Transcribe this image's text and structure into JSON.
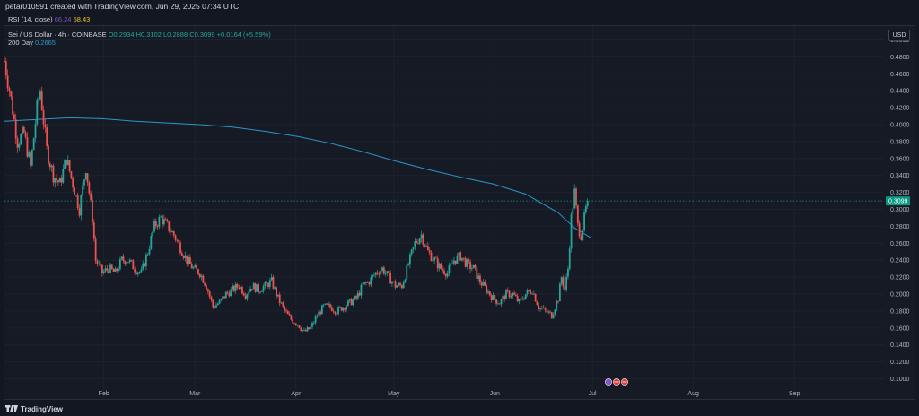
{
  "header": {
    "caption": "petar010591 created with TradingView.com, Jun 29, 2025 07:34 UTC"
  },
  "legend": {
    "rsi_name": "RSI (14, close)",
    "rsi_value_1": "66.24",
    "rsi_value_2": "58.43",
    "symbol": "Sei / US Dollar · 4h · COINBASE",
    "ohlc": "O0.2934 H0.3102 L0.2888 C0.3099 +0.0164 (+5.59%)",
    "ma_name": "200 Day",
    "ma_value": "0.2665"
  },
  "currency_badge": "USD",
  "footer": {
    "brand": "TradingView",
    "logo_icon": "tradingview-logo-icon"
  },
  "event_markers": {
    "icons": [
      "flash-icon",
      "flag-us-icon",
      "flag-us-icon"
    ]
  },
  "colors": {
    "up": "#26a69a",
    "down": "#ef5350",
    "ma": "#2b96c9",
    "price_badge": "#089981",
    "grid": "#1e222d",
    "background": "#161a25"
  },
  "chart_data": {
    "type": "candlestick",
    "interval": "4h",
    "y_scale": "linear",
    "ylim": [
      0.09,
      0.51
    ],
    "y_ticks": [
      "0.5000",
      "0.4800",
      "0.4600",
      "0.4400",
      "0.4200",
      "0.4000",
      "0.3800",
      "0.3600",
      "0.3400",
      "0.3200",
      "0.3000",
      "0.2800",
      "0.2600",
      "0.2400",
      "0.2200",
      "0.2000",
      "0.1800",
      "0.1600",
      "0.1400",
      "0.1200",
      "0.1000"
    ],
    "x_ticks": [
      "Feb",
      "Mar",
      "Apr",
      "May",
      "Jun",
      "Jul",
      "Aug",
      "Sep"
    ],
    "x_tick_positions": [
      30.5,
      58.5,
      89.5,
      119.5,
      150.5,
      180.5,
      211.5,
      242.5
    ],
    "x_range_days": [
      0,
      270
    ],
    "last_price": "0.3099",
    "last_price_value": 0.3099,
    "grid": true,
    "price_series_daily": [
      [
        0,
        0.475
      ],
      [
        2,
        0.43
      ],
      [
        4,
        0.38
      ],
      [
        6,
        0.39
      ],
      [
        8,
        0.35
      ],
      [
        10,
        0.42
      ],
      [
        11,
        0.44
      ],
      [
        13,
        0.37
      ],
      [
        15,
        0.34
      ],
      [
        17,
        0.33
      ],
      [
        19,
        0.36
      ],
      [
        21,
        0.33
      ],
      [
        23,
        0.3
      ],
      [
        25,
        0.35
      ],
      [
        27,
        0.29
      ],
      [
        28,
        0.24
      ],
      [
        30,
        0.225
      ],
      [
        32,
        0.23
      ],
      [
        34,
        0.225
      ],
      [
        36,
        0.24
      ],
      [
        38,
        0.24
      ],
      [
        40,
        0.23
      ],
      [
        42,
        0.225
      ],
      [
        44,
        0.25
      ],
      [
        46,
        0.28
      ],
      [
        48,
        0.29
      ],
      [
        50,
        0.28
      ],
      [
        52,
        0.27
      ],
      [
        54,
        0.255
      ],
      [
        56,
        0.24
      ],
      [
        58,
        0.23
      ],
      [
        60,
        0.225
      ],
      [
        62,
        0.21
      ],
      [
        64,
        0.185
      ],
      [
        66,
        0.19
      ],
      [
        68,
        0.2
      ],
      [
        70,
        0.205
      ],
      [
        72,
        0.21
      ],
      [
        74,
        0.2
      ],
      [
        76,
        0.21
      ],
      [
        78,
        0.205
      ],
      [
        80,
        0.21
      ],
      [
        82,
        0.215
      ],
      [
        84,
        0.195
      ],
      [
        86,
        0.18
      ],
      [
        88,
        0.17
      ],
      [
        90,
        0.165
      ],
      [
        92,
        0.155
      ],
      [
        94,
        0.16
      ],
      [
        96,
        0.175
      ],
      [
        98,
        0.185
      ],
      [
        100,
        0.185
      ],
      [
        102,
        0.18
      ],
      [
        104,
        0.185
      ],
      [
        106,
        0.19
      ],
      [
        108,
        0.195
      ],
      [
        110,
        0.21
      ],
      [
        112,
        0.215
      ],
      [
        114,
        0.225
      ],
      [
        116,
        0.23
      ],
      [
        118,
        0.22
      ],
      [
        120,
        0.21
      ],
      [
        122,
        0.21
      ],
      [
        124,
        0.235
      ],
      [
        126,
        0.26
      ],
      [
        128,
        0.27
      ],
      [
        130,
        0.25
      ],
      [
        132,
        0.24
      ],
      [
        134,
        0.23
      ],
      [
        136,
        0.225
      ],
      [
        138,
        0.24
      ],
      [
        140,
        0.245
      ],
      [
        142,
        0.235
      ],
      [
        144,
        0.23
      ],
      [
        146,
        0.215
      ],
      [
        148,
        0.205
      ],
      [
        150,
        0.195
      ],
      [
        152,
        0.19
      ],
      [
        154,
        0.2
      ],
      [
        156,
        0.2
      ],
      [
        158,
        0.19
      ],
      [
        160,
        0.2
      ],
      [
        162,
        0.205
      ],
      [
        164,
        0.185
      ],
      [
        166,
        0.18
      ],
      [
        168,
        0.175
      ],
      [
        170,
        0.195
      ],
      [
        171,
        0.22
      ],
      [
        172,
        0.205
      ],
      [
        173,
        0.23
      ],
      [
        174,
        0.29
      ],
      [
        175,
        0.32
      ],
      [
        176,
        0.28
      ],
      [
        177,
        0.27
      ],
      [
        178,
        0.29
      ],
      [
        179,
        0.3099
      ]
    ],
    "ma200_series_daily": [
      [
        0,
        0.404
      ],
      [
        10,
        0.406
      ],
      [
        20,
        0.408
      ],
      [
        30,
        0.407
      ],
      [
        40,
        0.404
      ],
      [
        50,
        0.402
      ],
      [
        60,
        0.4
      ],
      [
        70,
        0.397
      ],
      [
        80,
        0.392
      ],
      [
        90,
        0.386
      ],
      [
        100,
        0.378
      ],
      [
        110,
        0.368
      ],
      [
        120,
        0.357
      ],
      [
        130,
        0.347
      ],
      [
        140,
        0.338
      ],
      [
        150,
        0.33
      ],
      [
        160,
        0.318
      ],
      [
        170,
        0.296
      ],
      [
        175,
        0.278
      ],
      [
        180,
        0.2665
      ]
    ]
  }
}
